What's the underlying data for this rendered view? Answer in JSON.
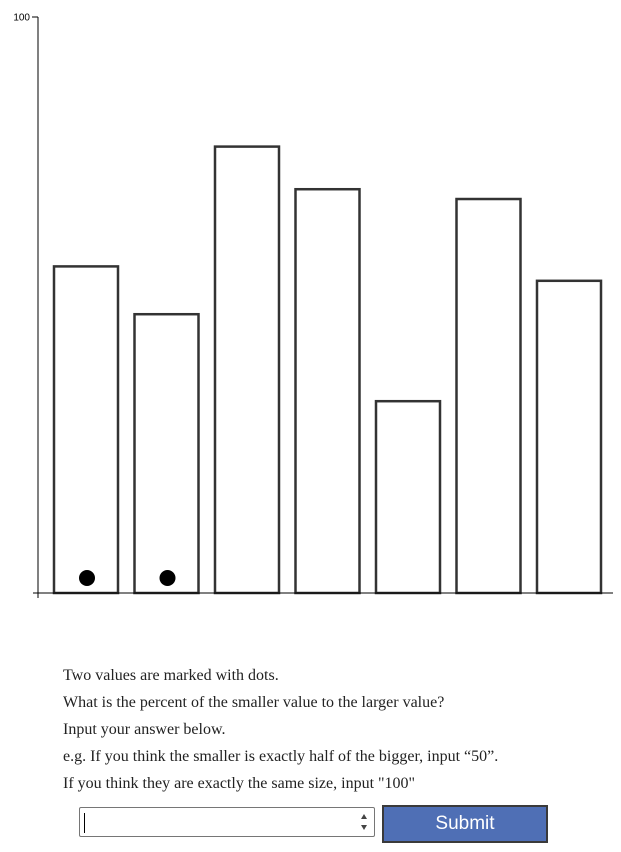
{
  "chart_data": {
    "type": "bar",
    "ylim": [
      0,
      100
    ],
    "y_ticks": [
      100
    ],
    "y_tick_labels": [
      "100"
    ],
    "values": [
      56.7,
      48.4,
      77.5,
      70.1,
      33.3,
      68.4,
      54.2
    ],
    "marked_indices": [
      0,
      1
    ],
    "grid": false,
    "legend": "none"
  },
  "instructions": {
    "line1": "Two values are marked with dots.",
    "line2": "What is the percent of the smaller value to the larger value?",
    "line3": "Input your answer below.",
    "line4": "e.g. If you think the smaller is exactly half of the bigger, input “50”.",
    "line5": "If you think they are exactly the same size, input \"100\""
  },
  "form": {
    "answer_value": "",
    "submit_label": "Submit"
  }
}
